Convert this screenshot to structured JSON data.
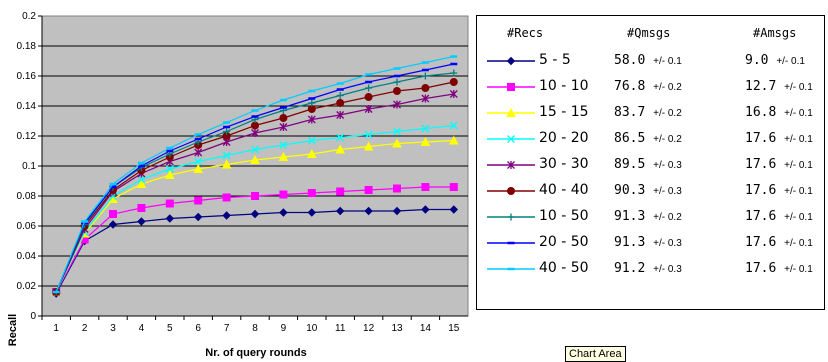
{
  "chart_data": {
    "type": "line",
    "xlabel": "Nr. of query rounds",
    "ylabel": "Recall",
    "ylim": [
      0,
      0.2
    ],
    "yticks": [
      "0",
      "0.02",
      "0.04",
      "0.06",
      "0.08",
      "0.1",
      "0.12",
      "0.14",
      "0.16",
      "0.18",
      "0.2"
    ],
    "x": [
      1,
      2,
      3,
      4,
      5,
      6,
      7,
      8,
      9,
      10,
      11,
      12,
      13,
      14,
      15
    ],
    "grid": "horizontal",
    "legend_placement": "right",
    "series": [
      {
        "name": "5 - 5",
        "color": "#000080",
        "marker": "diamond",
        "values": [
          0.015,
          0.05,
          0.061,
          0.063,
          0.065,
          0.066,
          0.067,
          0.068,
          0.069,
          0.069,
          0.07,
          0.07,
          0.07,
          0.071,
          0.071
        ]
      },
      {
        "name": "10 - 10",
        "color": "#ff00ff",
        "marker": "square",
        "values": [
          0.016,
          0.051,
          0.068,
          0.072,
          0.075,
          0.077,
          0.079,
          0.08,
          0.081,
          0.082,
          0.083,
          0.084,
          0.085,
          0.086,
          0.086
        ]
      },
      {
        "name": "15 - 15",
        "color": "#ffff00",
        "marker": "triangle",
        "values": [
          0.016,
          0.055,
          0.078,
          0.088,
          0.094,
          0.098,
          0.101,
          0.104,
          0.106,
          0.108,
          0.111,
          0.113,
          0.115,
          0.116,
          0.117
        ]
      },
      {
        "name": "20 - 20",
        "color": "#00ffff",
        "marker": "x",
        "values": [
          0.016,
          0.056,
          0.08,
          0.091,
          0.098,
          0.103,
          0.107,
          0.111,
          0.114,
          0.117,
          0.119,
          0.121,
          0.123,
          0.125,
          0.127
        ]
      },
      {
        "name": "30 - 30",
        "color": "#800080",
        "marker": "star",
        "values": [
          0.016,
          0.058,
          0.083,
          0.095,
          0.103,
          0.109,
          0.116,
          0.122,
          0.126,
          0.131,
          0.134,
          0.138,
          0.141,
          0.145,
          0.148
        ]
      },
      {
        "name": "40 - 40",
        "color": "#800000",
        "marker": "circle",
        "values": [
          0.016,
          0.06,
          0.084,
          0.097,
          0.106,
          0.114,
          0.12,
          0.127,
          0.132,
          0.138,
          0.142,
          0.146,
          0.15,
          0.152,
          0.156
        ]
      },
      {
        "name": "10 - 50",
        "color": "#008080",
        "marker": "plus",
        "values": [
          0.016,
          0.061,
          0.086,
          0.099,
          0.108,
          0.116,
          0.123,
          0.131,
          0.137,
          0.142,
          0.147,
          0.152,
          0.156,
          0.16,
          0.162
        ]
      },
      {
        "name": "20 - 50",
        "color": "#0000ff",
        "marker": "dash",
        "values": [
          0.016,
          0.062,
          0.086,
          0.1,
          0.11,
          0.118,
          0.126,
          0.133,
          0.139,
          0.145,
          0.151,
          0.156,
          0.16,
          0.164,
          0.168
        ]
      },
      {
        "name": "40 - 50",
        "color": "#00ccff",
        "marker": "dash",
        "values": [
          0.016,
          0.063,
          0.088,
          0.102,
          0.112,
          0.121,
          0.129,
          0.137,
          0.144,
          0.15,
          0.155,
          0.161,
          0.165,
          0.169,
          0.173
        ]
      }
    ],
    "legend_table": {
      "headers": [
        "#Recs",
        "#Qmsgs",
        "#Amsgs"
      ],
      "rows": [
        {
          "q": "58.0",
          "q_pm": "+/- 0.1",
          "a": "9.0",
          "a_pm": "+/- 0.1"
        },
        {
          "q": "76.8",
          "q_pm": "+/- 0.2",
          "a": "12.7",
          "a_pm": "+/- 0.1"
        },
        {
          "q": "83.7",
          "q_pm": "+/- 0.2",
          "a": "16.8",
          "a_pm": "+/- 0.1"
        },
        {
          "q": "86.5",
          "q_pm": "+/- 0.2",
          "a": "17.6",
          "a_pm": "+/- 0.1"
        },
        {
          "q": "89.5",
          "q_pm": "+/- 0.3",
          "a": "17.6",
          "a_pm": "+/- 0.1"
        },
        {
          "q": "90.3",
          "q_pm": "+/- 0.3",
          "a": "17.6",
          "a_pm": "+/- 0.1"
        },
        {
          "q": "91.3",
          "q_pm": "+/- 0.2",
          "a": "17.6",
          "a_pm": "+/- 0.1"
        },
        {
          "q": "91.3",
          "q_pm": "+/- 0.3",
          "a": "17.6",
          "a_pm": "+/- 0.1"
        },
        {
          "q": "91.2",
          "q_pm": "+/- 0.3",
          "a": "17.6",
          "a_pm": "+/- 0.1"
        }
      ]
    }
  },
  "tooltip": "Chart Area"
}
